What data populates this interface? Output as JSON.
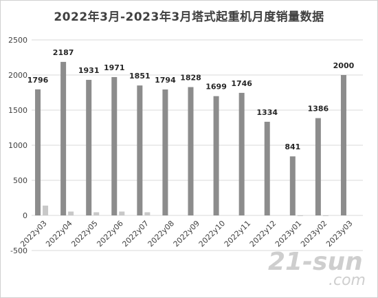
{
  "chart_data": {
    "type": "bar",
    "title": "2022年3月-2023年3月塔式起重机月度销量数据",
    "xlabel": "",
    "ylabel": "",
    "categories": [
      "2022y03",
      "2022y04",
      "2022y05",
      "2022y06",
      "2022y07",
      "2022y08",
      "2022y09",
      "2022y10",
      "2022y11",
      "2022y12",
      "2023y01",
      "2023y02",
      "2023y03"
    ],
    "series": [
      {
        "values": [
          1796,
          2187,
          1931,
          1971,
          1851,
          1794,
          1828,
          1699,
          1746,
          1334,
          841,
          1386,
          2000
        ],
        "color": "#8c8c8c",
        "show_labels": true
      },
      {
        "values": [
          140,
          55,
          45,
          55,
          45,
          0,
          0,
          0,
          0,
          0,
          -8,
          -8,
          0
        ],
        "color": "#c8c8c8",
        "show_labels": false
      }
    ],
    "ylim": [
      -500,
      2500
    ],
    "yticks": [
      -500,
      0,
      500,
      1000,
      1500,
      2000,
      2500
    ],
    "grid": true,
    "legend": "none"
  },
  "watermark": {
    "text": "21-sun",
    "suffix": ".com"
  }
}
